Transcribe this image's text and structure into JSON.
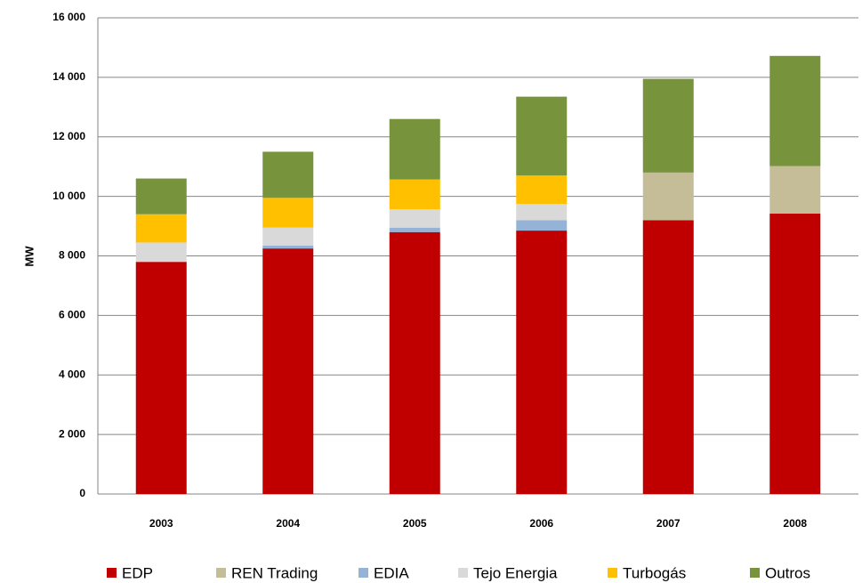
{
  "chart_data": {
    "type": "stacked-bar",
    "y_label": "MW",
    "categories": [
      "2003",
      "2004",
      "2005",
      "2006",
      "2007",
      "2008"
    ],
    "series": [
      {
        "name": "EDP",
        "color": "#c00000",
        "values": [
          7800,
          8250,
          8800,
          8850,
          9200,
          9420
        ]
      },
      {
        "name": "REN Trading",
        "color": "#c4bd97",
        "values": [
          0,
          0,
          0,
          0,
          1600,
          1600
        ]
      },
      {
        "name": "EDIA",
        "color": "#95b3d7",
        "values": [
          0,
          100,
          150,
          350,
          0,
          0
        ]
      },
      {
        "name": "Tejo Energia",
        "color": "#d9d9d9",
        "values": [
          650,
          600,
          620,
          550,
          0,
          0
        ]
      },
      {
        "name": "Turbogás",
        "color": "#ffc000",
        "values": [
          950,
          1000,
          1000,
          950,
          0,
          0
        ]
      },
      {
        "name": "Outros",
        "color": "#77933c",
        "values": [
          1200,
          1550,
          2030,
          2650,
          3150,
          3700
        ]
      }
    ],
    "ylim": [
      0,
      16000
    ],
    "yticks": [
      {
        "value": 0,
        "label": "0"
      },
      {
        "value": 2000,
        "label": "2 000"
      },
      {
        "value": 4000,
        "label": "4 000"
      },
      {
        "value": 6000,
        "label": "6 000"
      },
      {
        "value": 8000,
        "label": "8 000"
      },
      {
        "value": 10000,
        "label": "10 000"
      },
      {
        "value": 12000,
        "label": "12 000"
      },
      {
        "value": 14000,
        "label": "14 000"
      },
      {
        "value": 16000,
        "label": "16 000"
      }
    ],
    "grid": true
  }
}
